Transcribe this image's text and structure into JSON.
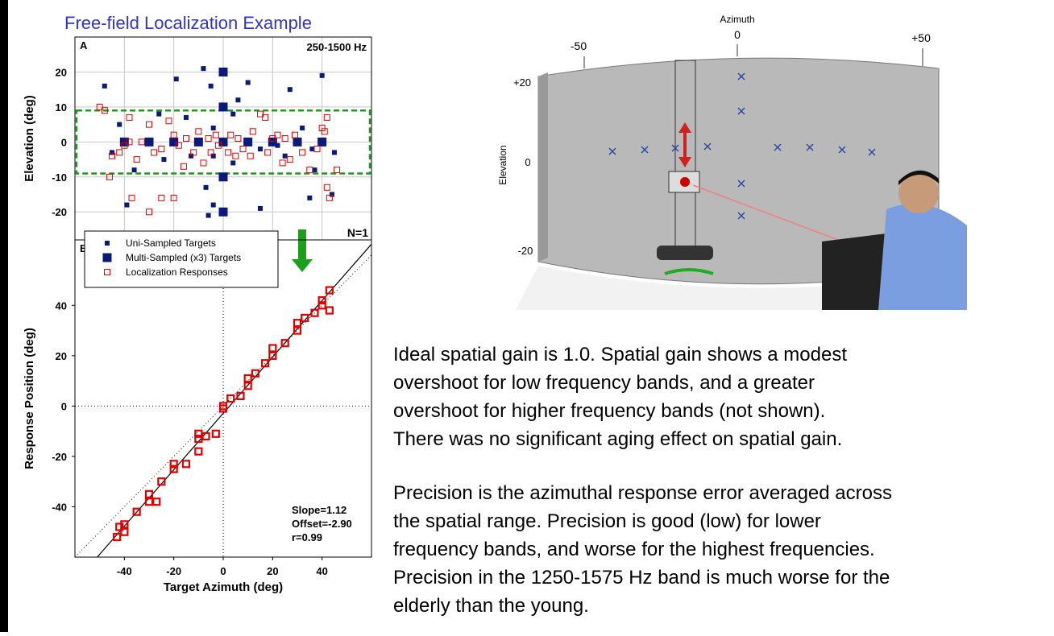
{
  "title": "Free-field Localization Example",
  "chart_data": [
    {
      "type": "scatter",
      "panel_label": "A",
      "band_label": "250-1500 Hz",
      "n_label": "N=1",
      "ylabel": "Elevation (deg)",
      "xlim": [
        -60,
        60
      ],
      "ylim": [
        -28,
        30
      ],
      "xticks": [
        -40,
        -20,
        0,
        20,
        40
      ],
      "yticks": [
        -20,
        -10,
        0,
        10,
        20
      ],
      "grid": true,
      "highlight_ylim": [
        -9,
        9
      ],
      "series": [
        {
          "name": "Uni-Sampled Targets",
          "color": "#0a1a7a",
          "marker": "square",
          "x": [
            -48,
            -39,
            -19,
            -8,
            -5,
            10,
            6,
            4,
            -15,
            -26,
            -42,
            -45,
            -36,
            -24,
            -13,
            -4,
            -4,
            4,
            -7,
            -4,
            -6,
            15,
            22,
            27,
            40,
            44,
            35,
            15,
            37,
            32,
            45,
            25,
            36
          ],
          "values": [
            16,
            -18,
            18,
            21,
            16,
            17,
            12,
            8,
            7,
            8,
            5,
            -3,
            -8,
            -5,
            -4,
            4,
            -4,
            -6,
            -13,
            -18,
            -21,
            -2,
            -1,
            15,
            19,
            -15,
            -16,
            -19,
            -8,
            4,
            -3,
            -4,
            -2
          ]
        },
        {
          "name": "Multi-Sampled (x3) Targets",
          "color": "#0a1a7a",
          "marker": "square-large",
          "x": [
            0,
            0,
            0,
            0,
            0,
            -40,
            -30,
            -20,
            -10,
            10,
            20,
            30,
            40
          ],
          "values": [
            20,
            10,
            0,
            -10,
            -20,
            0,
            0,
            0,
            0,
            0,
            0,
            0,
            0
          ]
        },
        {
          "name": "Localization Responses",
          "color": "#e00000",
          "marker": "open-square",
          "x": [
            -46,
            -50,
            -48,
            -45,
            -42,
            -40,
            -38,
            -35,
            -33,
            -30,
            -28,
            -25,
            -22,
            -20,
            -18,
            -16,
            -15,
            -12,
            -10,
            -8,
            -6,
            -5,
            -3,
            -2,
            2,
            3,
            5,
            6,
            8,
            11,
            12,
            15,
            17,
            18,
            22,
            24,
            25,
            27,
            29,
            32,
            35,
            38,
            40,
            41,
            42,
            42,
            43,
            46,
            -37,
            -30,
            -25,
            -20,
            -38,
            20
          ],
          "values": [
            -10,
            10,
            9,
            -4,
            -3,
            -1,
            0,
            -5,
            0,
            5,
            -3,
            -2,
            6,
            2,
            -1,
            -7,
            1,
            -3,
            3,
            -6,
            1,
            -3,
            2,
            -1,
            -3,
            2,
            -4,
            1,
            -2,
            -4,
            3,
            8,
            7,
            -3,
            2,
            -6,
            1,
            -5,
            2,
            -3,
            -8,
            -2,
            4,
            3,
            7,
            -13,
            -16,
            -8,
            -16,
            -20,
            -16,
            -16,
            7,
            1
          ]
        }
      ]
    },
    {
      "type": "scatter",
      "panel_label": "B",
      "xlabel": "Target Azimuth (deg)",
      "ylabel": "Response Position (deg)",
      "xlim": [
        -60,
        60
      ],
      "ylim": [
        -60,
        66
      ],
      "xticks": [
        -40,
        -20,
        0,
        20,
        40
      ],
      "yticks": [
        -40,
        -20,
        0,
        20,
        40
      ],
      "grid": false,
      "fit_line": {
        "slope": 1.12,
        "intercept": -2.9
      },
      "annotations": [
        "Slope=1.12",
        "Offset=-2.90",
        "r=0.99"
      ],
      "series": [
        {
          "color": "#e00000",
          "marker": "open-square-bold",
          "x": [
            -43,
            -42,
            -40,
            -40,
            -35,
            -30,
            -30,
            -27,
            -25,
            -20,
            -20,
            -15,
            -10,
            -10,
            -10,
            -7,
            -3,
            0,
            0,
            3,
            7,
            10,
            10,
            13,
            17,
            20,
            20,
            25,
            30,
            30,
            33,
            37,
            40,
            40,
            43,
            43
          ],
          "values": [
            -52,
            -48,
            -50,
            -47,
            -42,
            -38,
            -35,
            -38,
            -30,
            -25,
            -23,
            -23,
            -18,
            -13,
            -11,
            -12,
            -11,
            -1,
            0,
            3,
            4,
            8,
            11,
            13,
            17,
            20,
            23,
            25,
            30,
            33,
            35,
            37,
            40,
            42,
            38,
            46
          ]
        }
      ]
    }
  ],
  "illustration": {
    "azimuth_label": "Azimuth",
    "azimuth_ticks": [
      "-50",
      "0",
      "+50"
    ],
    "elevation_label": "Elevation",
    "elevation_ticks": [
      "+20",
      "0",
      "-20"
    ]
  },
  "paragraphs": [
    [
      "Ideal spatial gain is 1.0. Spatial gain shows a modest",
      "overshoot for low frequency bands, and a greater",
      "overshoot for higher frequency bands (not shown).",
      "There was no significant aging effect on spatial gain."
    ],
    [
      "Precision is the azimuthal response error averaged across",
      "the spatial range. Precision is good (low) for lower",
      "frequency bands, and worse for the highest frequencies.",
      "Precision in the 1250-1575 Hz band is much worse for the",
      "elderly than the young."
    ]
  ]
}
